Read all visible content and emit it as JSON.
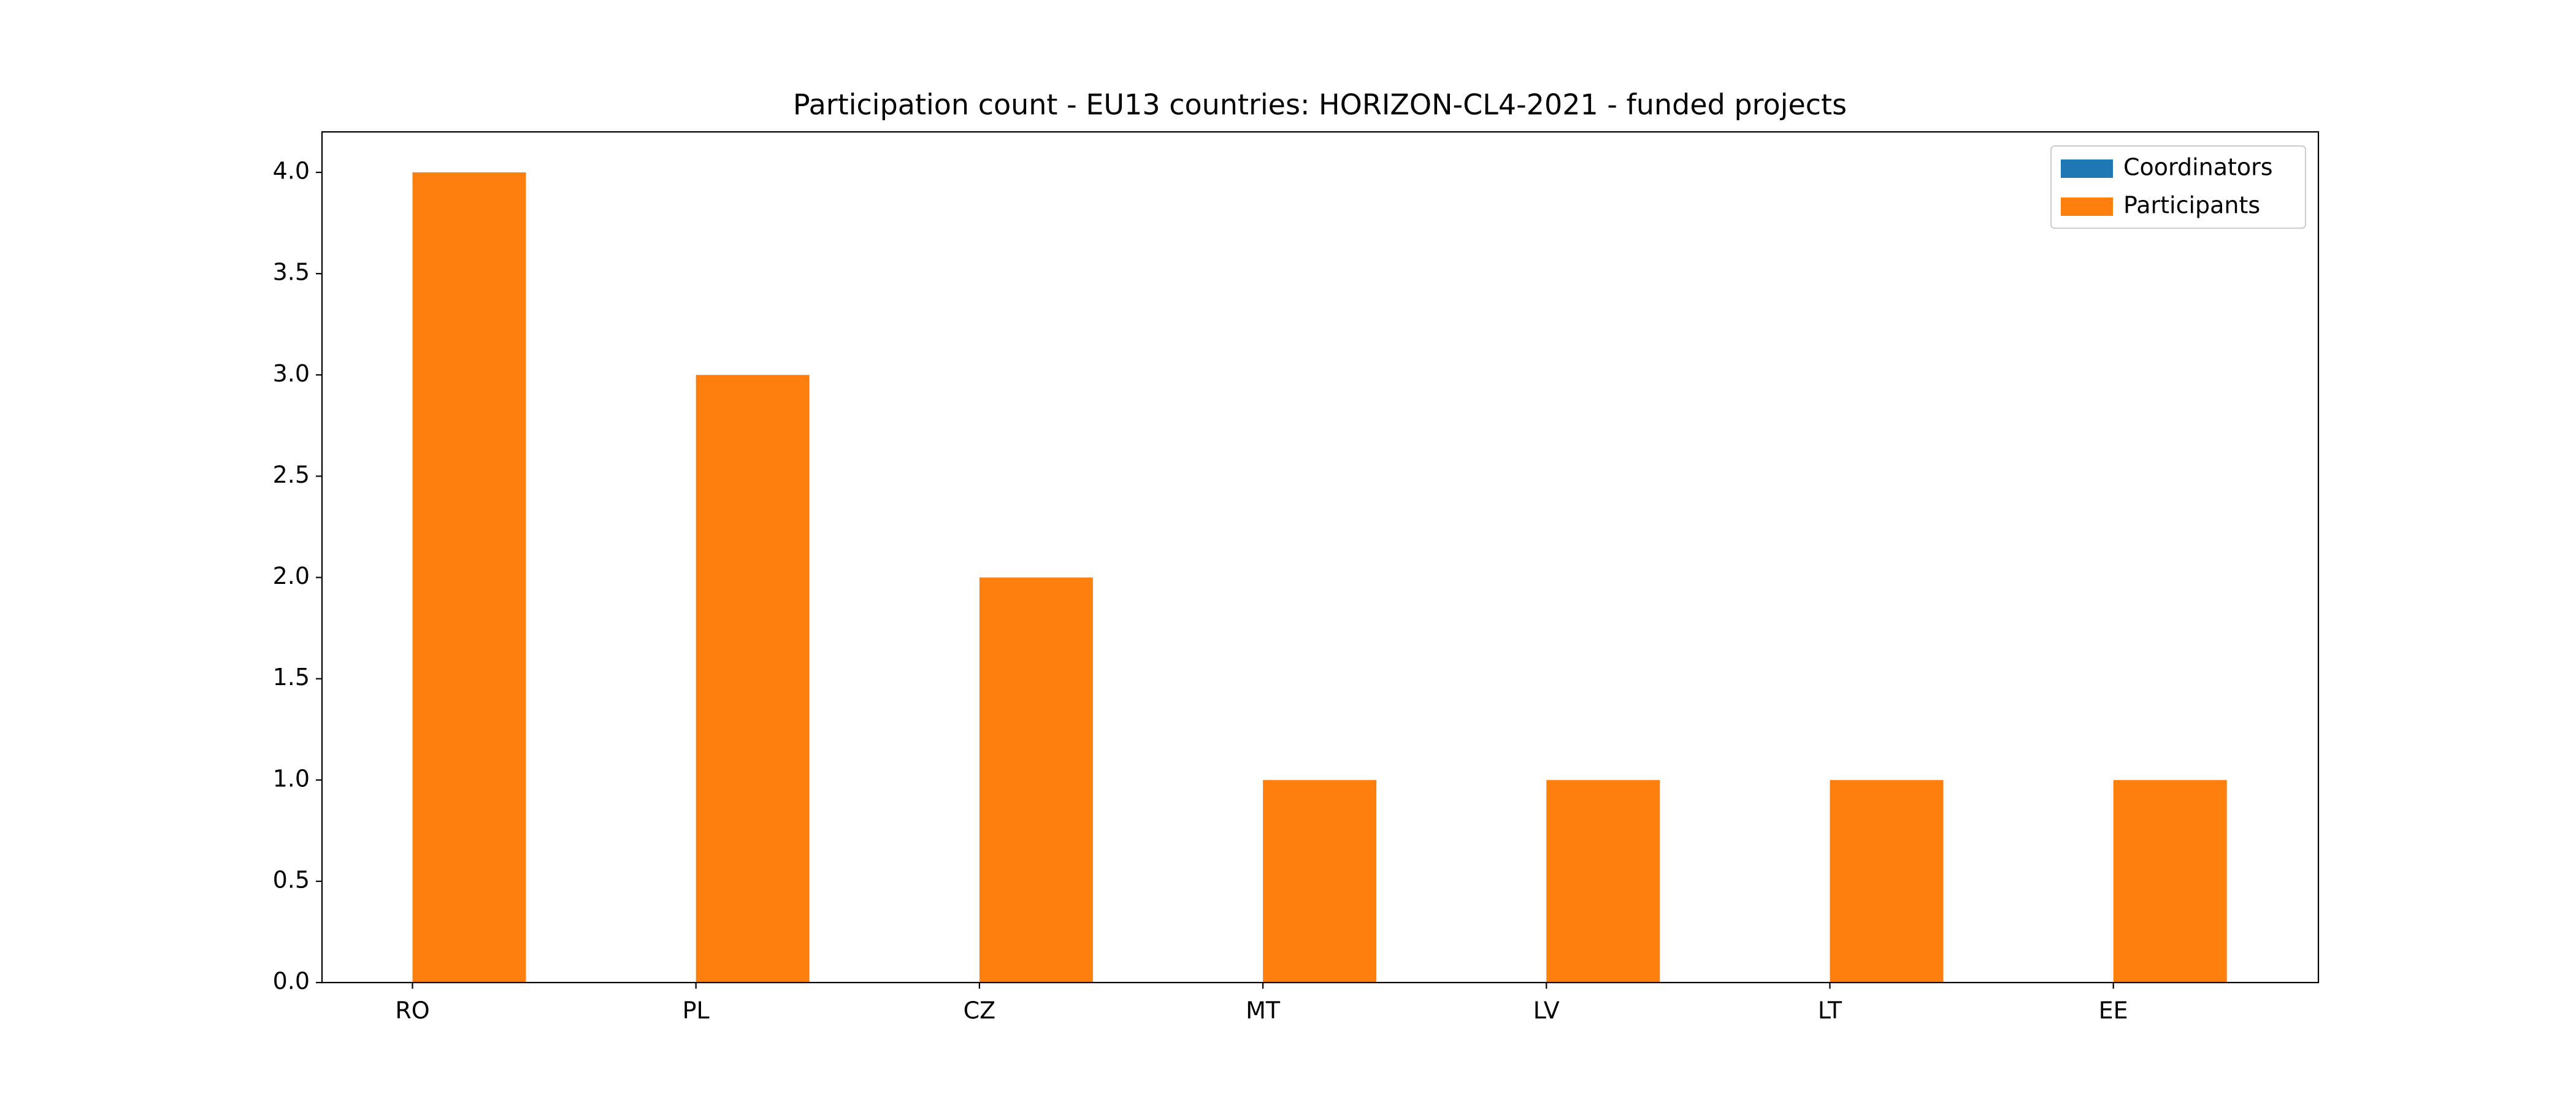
{
  "chart_data": {
    "type": "bar",
    "title": "Participation count - EU13 countries: HORIZON-CL4-2021 - funded projects",
    "categories": [
      "RO",
      "PL",
      "CZ",
      "MT",
      "LV",
      "LT",
      "EE"
    ],
    "series": [
      {
        "name": "Coordinators",
        "color": "#1f77b4",
        "values": [
          0,
          0,
          0,
          0,
          0,
          0,
          0
        ]
      },
      {
        "name": "Participants",
        "color": "#ff7f0e",
        "values": [
          4,
          3,
          2,
          1,
          1,
          1,
          1
        ]
      }
    ],
    "ylim": [
      0,
      4.2
    ],
    "yticks": [
      {
        "value": 0,
        "label": "0.0"
      },
      0.5,
      {
        "value": 1,
        "label": "1.0"
      },
      1.5,
      {
        "value": 2,
        "label": "2.0"
      },
      2.5,
      {
        "value": 3,
        "label": "3.0"
      },
      3.5,
      {
        "value": 4,
        "label": "4.0"
      }
    ],
    "grid": false,
    "legend": "upper right"
  }
}
